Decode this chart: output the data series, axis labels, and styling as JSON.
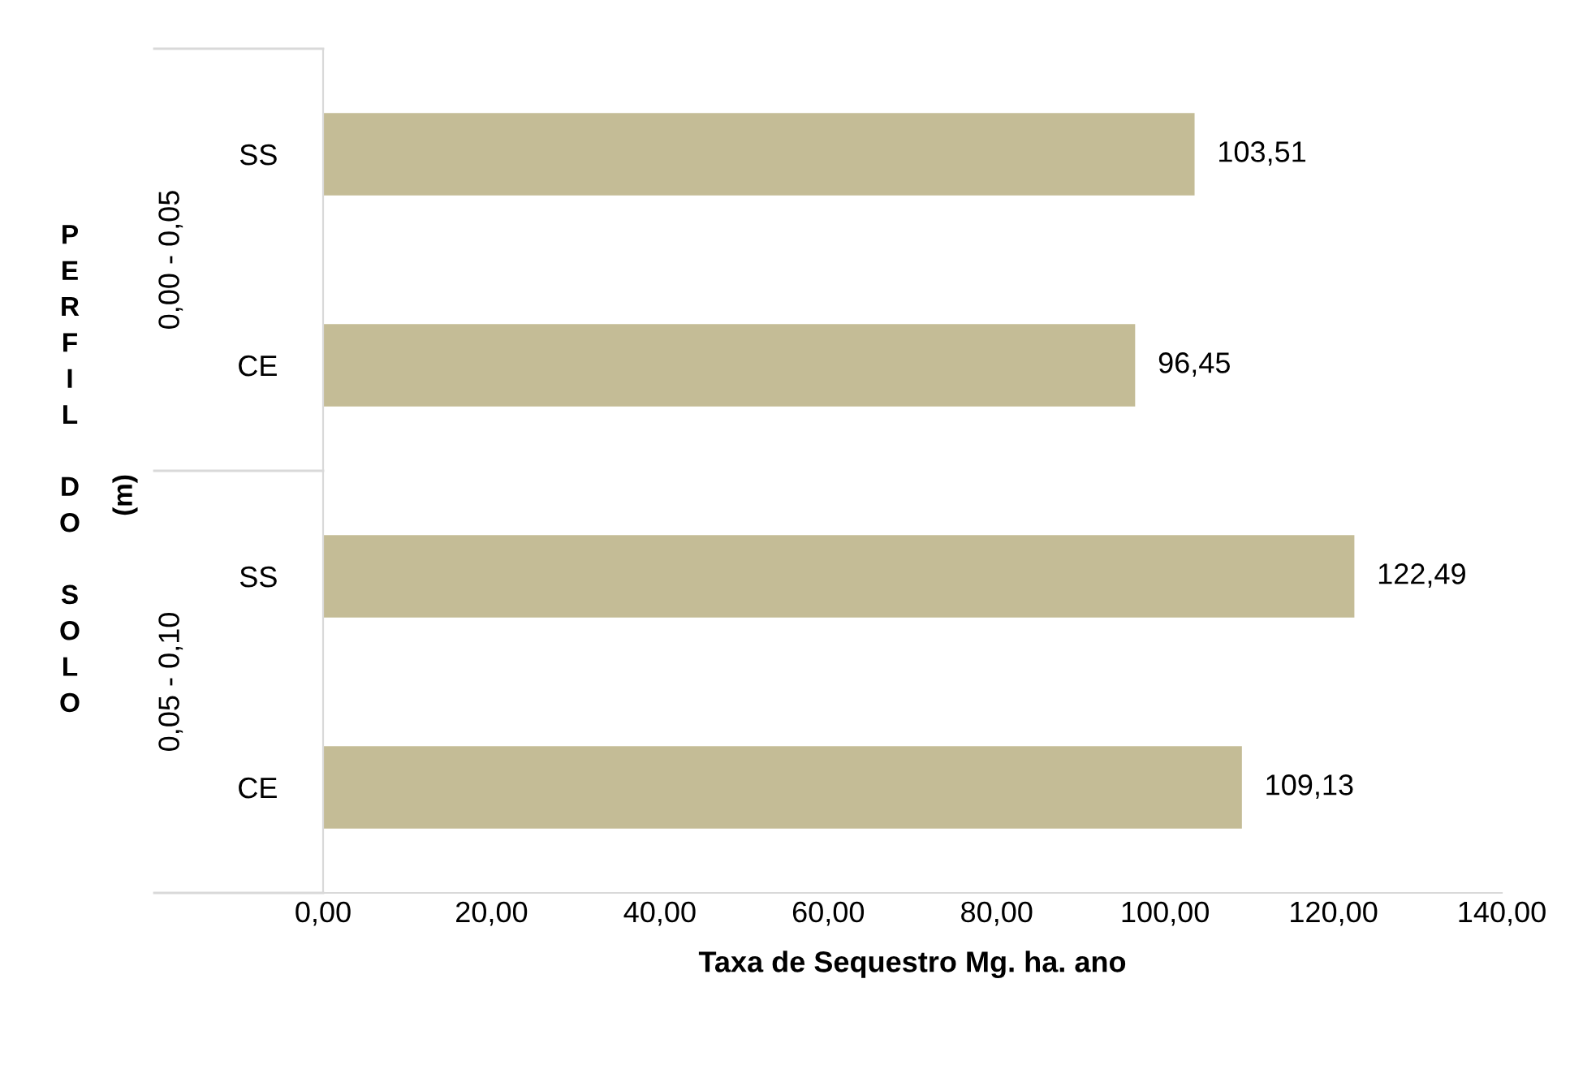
{
  "chart_data": {
    "type": "bar",
    "orientation": "horizontal",
    "xlabel": "Taxa de Sequestro Mg. ha. ano",
    "ylabel": "PERFIL DO SOLO (m)",
    "categories": [
      "SS",
      "CE",
      "SS",
      "CE"
    ],
    "annotations": [
      "0,00 - 0,05",
      "0,05 - 0,10"
    ],
    "values": [
      103.51,
      96.45,
      122.49,
      109.13
    ],
    "value_labels": [
      "103,51",
      "96,45",
      "122,49",
      "109,13"
    ],
    "color": "#c4bc96",
    "xlim": [
      0,
      140
    ],
    "xticks": [
      {
        "value": 0,
        "label": "0,00"
      },
      {
        "value": 20,
        "label": "20,00"
      },
      {
        "value": 40,
        "label": "40,00"
      },
      {
        "value": 60,
        "label": "60,00"
      },
      {
        "value": 80,
        "label": "80,00"
      },
      {
        "value": 100,
        "label": "100,00"
      },
      {
        "value": 120,
        "label": "120,00"
      },
      {
        "value": 140,
        "label": "140,00"
      }
    ],
    "grid": false
  }
}
